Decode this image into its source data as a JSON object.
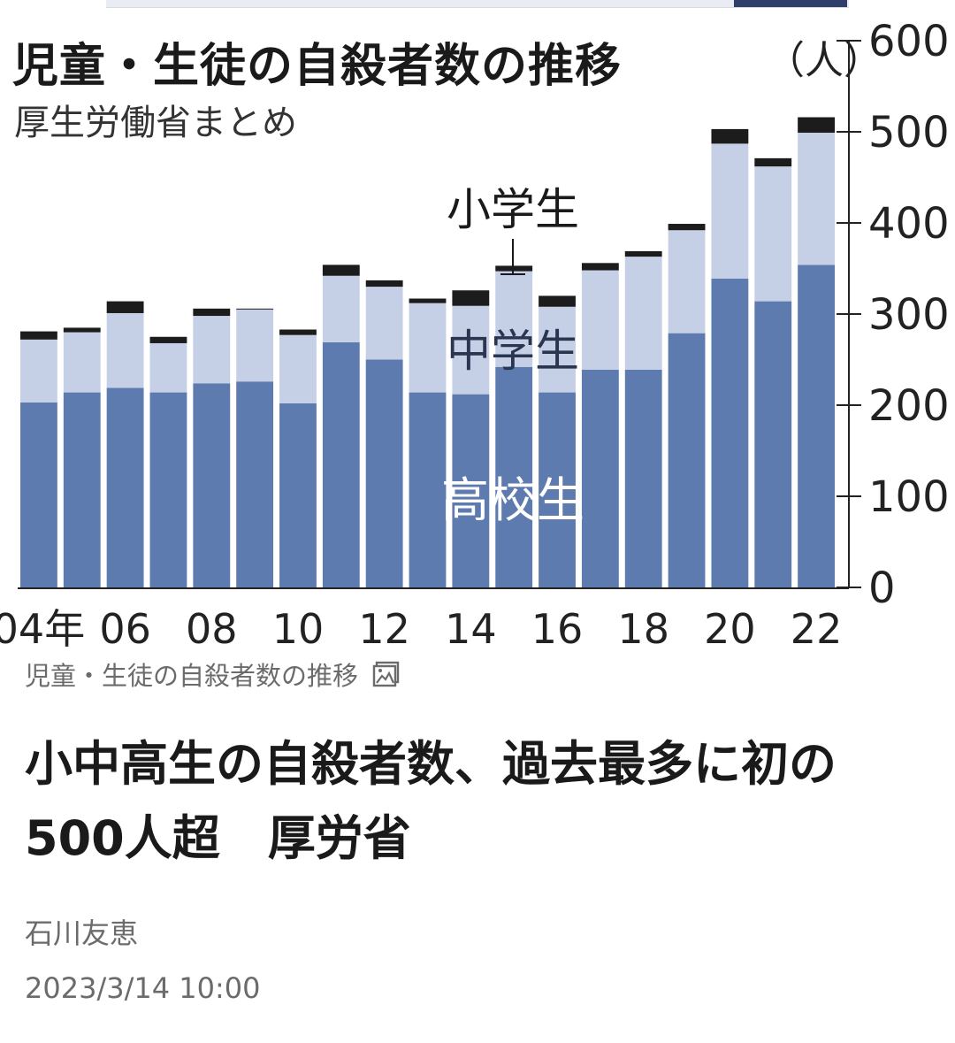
{
  "chart_data": {
    "type": "bar",
    "stacked": true,
    "title": "児童・生徒の自殺者数の推移",
    "subtitle": "厚生労働省まとめ",
    "unit": "（人）",
    "ylim": [
      0,
      600
    ],
    "yticks": [
      0,
      100,
      200,
      300,
      400,
      500,
      600
    ],
    "y_axis_side": "right",
    "categories": [
      "2004",
      "2005",
      "2006",
      "2007",
      "2008",
      "2009",
      "2010",
      "2011",
      "2012",
      "2013",
      "2014",
      "2015",
      "2016",
      "2017",
      "2018",
      "2019",
      "2020",
      "2021",
      "2022"
    ],
    "x_tick_labels": [
      "04年",
      "",
      "06",
      "",
      "08",
      "",
      "10",
      "",
      "12",
      "",
      "14",
      "",
      "16",
      "",
      "18",
      "",
      "20",
      "",
      "22"
    ],
    "series": [
      {
        "name": "高校生",
        "color": "#5e7bb0",
        "values": [
          203,
          214,
          219,
          214,
          224,
          226,
          202,
          269,
          250,
          214,
          212,
          242,
          214,
          239,
          239,
          279,
          339,
          314,
          354
        ]
      },
      {
        "name": "中学生",
        "color": "#c5d0e6",
        "values": [
          69,
          66,
          82,
          54,
          74,
          79,
          75,
          73,
          80,
          98,
          97,
          105,
          94,
          109,
          124,
          113,
          148,
          148,
          145
        ]
      },
      {
        "name": "小学生",
        "color": "#1c1c1c",
        "values": [
          9,
          5,
          13,
          7,
          8,
          1,
          6,
          12,
          7,
          5,
          17,
          6,
          12,
          8,
          6,
          7,
          16,
          9,
          17
        ]
      }
    ],
    "series_labels_in_plot": [
      "小学生",
      "中学生",
      "高校生"
    ],
    "legend": "inline-labels",
    "grid": false
  },
  "figure_caption": "児童・生徒の自殺者数の推移",
  "caption_icon": "image-icon",
  "article": {
    "headline": "小中高生の自殺者数、過去最多に初の500人超　厚労省",
    "author": "石川友恵",
    "timestamp": "2023/3/14 10:00"
  },
  "colors": {
    "high_school": "#5e7bb0",
    "junior_high": "#c5d0e6",
    "elementary": "#1c1c1c",
    "caption_gray": "#6b6b6b"
  }
}
